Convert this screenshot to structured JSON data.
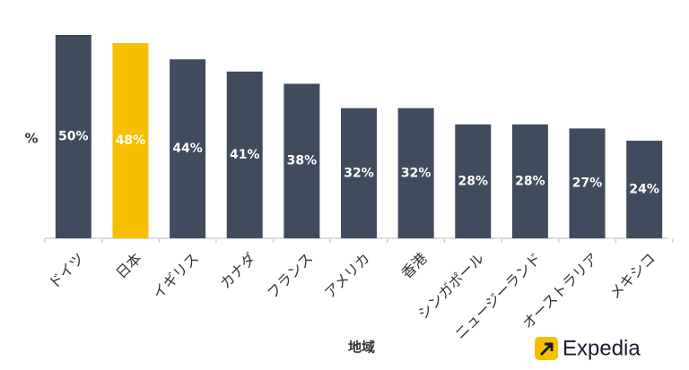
{
  "chart_data": {
    "type": "bar",
    "y_label": "%",
    "x_label": "地域",
    "categories": [
      "ドイツ",
      "日本",
      "イギリス",
      "カナダ",
      "フランス",
      "アメリカ",
      "香港",
      "シンガポール",
      "ニュージーランド",
      "オーストラリア",
      "メキシコ"
    ],
    "values": [
      50,
      48,
      44,
      41,
      38,
      32,
      32,
      28,
      28,
      27,
      24
    ],
    "value_labels": [
      "50%",
      "48%",
      "44%",
      "41%",
      "38%",
      "32%",
      "32%",
      "28%",
      "28%",
      "27%",
      "24%"
    ],
    "colors": [
      "#404b5e",
      "#f6c000",
      "#404b5e",
      "#404b5e",
      "#404b5e",
      "#404b5e",
      "#404b5e",
      "#404b5e",
      "#404b5e",
      "#404b5e",
      "#404b5e"
    ],
    "ylim": [
      0,
      50
    ]
  },
  "brand": "Expedia"
}
